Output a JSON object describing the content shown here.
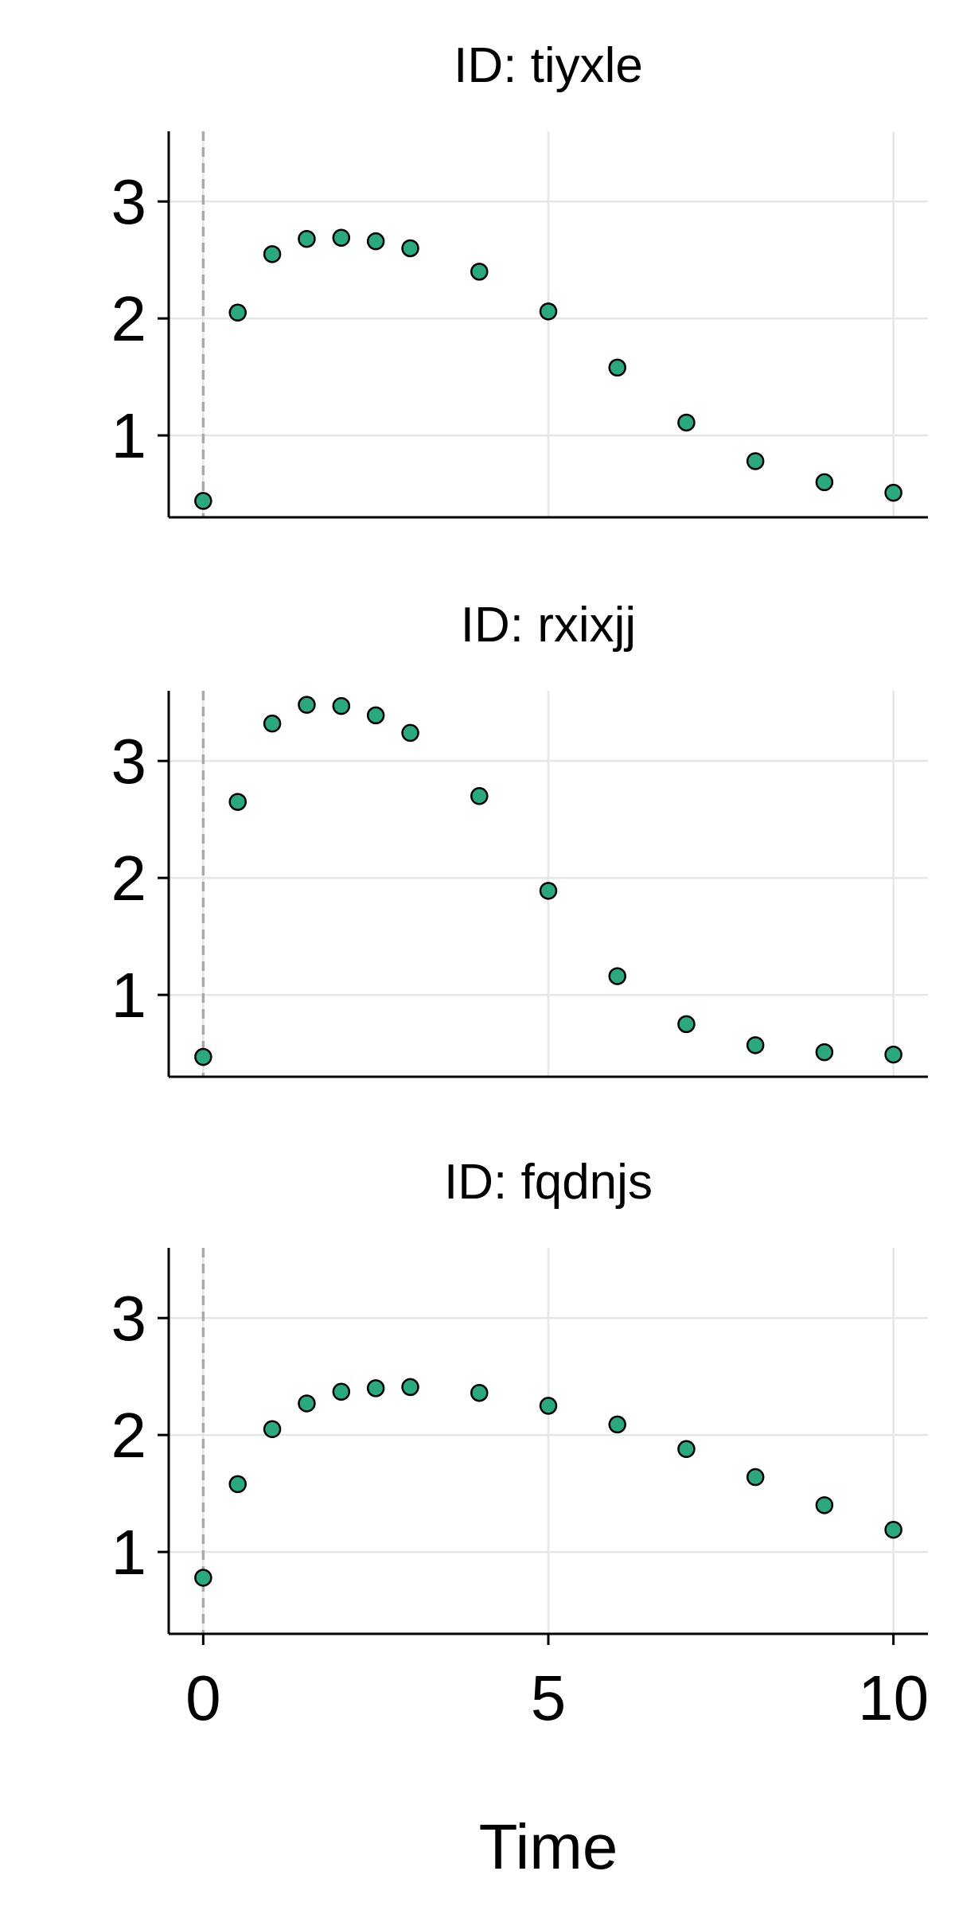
{
  "chart_data": {
    "type": "scatter",
    "layout": "3 stacked panels, shared x axis and shared y scale",
    "xlabel": "Time",
    "ylabel": "",
    "xlim": [
      -0.5,
      10.5
    ],
    "ylim": [
      0.3,
      3.6
    ],
    "x_ticks": [
      0,
      5,
      10
    ],
    "y_ticks": [
      1,
      2,
      3
    ],
    "grid": true,
    "reference_line": {
      "x": 0,
      "style": "dashed",
      "color": "#aaaaaa"
    },
    "marker_color": "#2ca87f",
    "marker_edge_color": "#000000",
    "grid_color": "#e6e6e6",
    "panels": [
      {
        "title": "ID: tiyxle",
        "points": [
          {
            "x": 0,
            "y": 0.44
          },
          {
            "x": 0.5,
            "y": 2.05
          },
          {
            "x": 1,
            "y": 2.55
          },
          {
            "x": 1.5,
            "y": 2.68
          },
          {
            "x": 2,
            "y": 2.69
          },
          {
            "x": 2.5,
            "y": 2.66
          },
          {
            "x": 3,
            "y": 2.6
          },
          {
            "x": 4,
            "y": 2.4
          },
          {
            "x": 5,
            "y": 2.06
          },
          {
            "x": 6,
            "y": 1.58
          },
          {
            "x": 7,
            "y": 1.11
          },
          {
            "x": 8,
            "y": 0.78
          },
          {
            "x": 9,
            "y": 0.6
          },
          {
            "x": 10,
            "y": 0.51
          }
        ]
      },
      {
        "title": "ID: rxixjj",
        "points": [
          {
            "x": 0,
            "y": 0.47
          },
          {
            "x": 0.5,
            "y": 2.65
          },
          {
            "x": 1,
            "y": 3.32
          },
          {
            "x": 1.5,
            "y": 3.48
          },
          {
            "x": 2,
            "y": 3.47
          },
          {
            "x": 2.5,
            "y": 3.39
          },
          {
            "x": 3,
            "y": 3.24
          },
          {
            "x": 4,
            "y": 2.7
          },
          {
            "x": 5,
            "y": 1.89
          },
          {
            "x": 6,
            "y": 1.16
          },
          {
            "x": 7,
            "y": 0.75
          },
          {
            "x": 8,
            "y": 0.57
          },
          {
            "x": 9,
            "y": 0.51
          },
          {
            "x": 10,
            "y": 0.49
          }
        ]
      },
      {
        "title": "ID: fqdnjs",
        "points": [
          {
            "x": 0,
            "y": 0.78
          },
          {
            "x": 0.5,
            "y": 1.58
          },
          {
            "x": 1,
            "y": 2.05
          },
          {
            "x": 1.5,
            "y": 2.27
          },
          {
            "x": 2,
            "y": 2.37
          },
          {
            "x": 2.5,
            "y": 2.4
          },
          {
            "x": 3,
            "y": 2.41
          },
          {
            "x": 4,
            "y": 2.36
          },
          {
            "x": 5,
            "y": 2.25
          },
          {
            "x": 6,
            "y": 2.09
          },
          {
            "x": 7,
            "y": 1.88
          },
          {
            "x": 8,
            "y": 1.64
          },
          {
            "x": 9,
            "y": 1.4
          },
          {
            "x": 10,
            "y": 1.19
          }
        ]
      }
    ]
  }
}
